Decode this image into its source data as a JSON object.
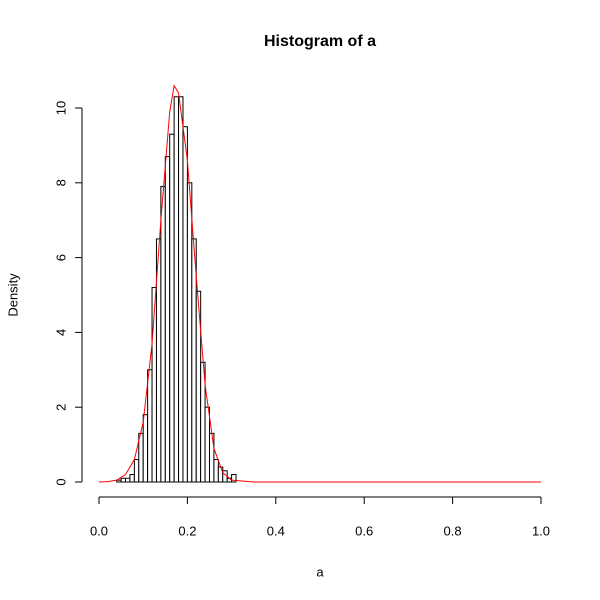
{
  "chart_data": {
    "type": "histogram",
    "title": "Histogram of a",
    "xlabel": "a",
    "ylabel": "Density",
    "bins": [
      0.04,
      0.05,
      0.06,
      0.07,
      0.08,
      0.09,
      0.1,
      0.11,
      0.12,
      0.13,
      0.14,
      0.15,
      0.16,
      0.17,
      0.18,
      0.19,
      0.2,
      0.21,
      0.22,
      0.23,
      0.24,
      0.25,
      0.26,
      0.27,
      0.28,
      0.29,
      0.3,
      0.31
    ],
    "values": [
      0.05,
      0.1,
      0.1,
      0.2,
      0.6,
      1.3,
      1.8,
      3.0,
      5.2,
      6.5,
      7.9,
      8.7,
      9.3,
      10.3,
      10.3,
      9.5,
      8.0,
      6.5,
      5.1,
      3.2,
      2.0,
      1.3,
      0.6,
      0.4,
      0.3,
      0.1,
      0.2
    ],
    "color": "#ffffff",
    "curve": {
      "color": "#ff0000",
      "x": [
        0,
        0.02,
        0.04,
        0.06,
        0.08,
        0.1,
        0.12,
        0.14,
        0.16,
        0.17,
        0.18,
        0.2,
        0.22,
        0.24,
        0.26,
        0.28,
        0.3,
        0.35,
        0.4,
        0.6,
        0.8,
        1.0
      ],
      "y": [
        0,
        0.01,
        0.05,
        0.2,
        0.6,
        1.6,
        3.7,
        7.0,
        9.9,
        10.6,
        10.4,
        8.6,
        5.5,
        2.6,
        0.9,
        0.25,
        0.05,
        0,
        0,
        0,
        0,
        0
      ]
    },
    "xlim": [
      0,
      1
    ],
    "ylim": [
      0,
      10
    ],
    "xticks": [
      {
        "value": 0,
        "label": "0.0"
      },
      0.2,
      0.4,
      0.6,
      0.8,
      {
        "value": 1,
        "label": "1.0"
      }
    ],
    "yticks": [
      0,
      2,
      4,
      6,
      8,
      10
    ]
  }
}
